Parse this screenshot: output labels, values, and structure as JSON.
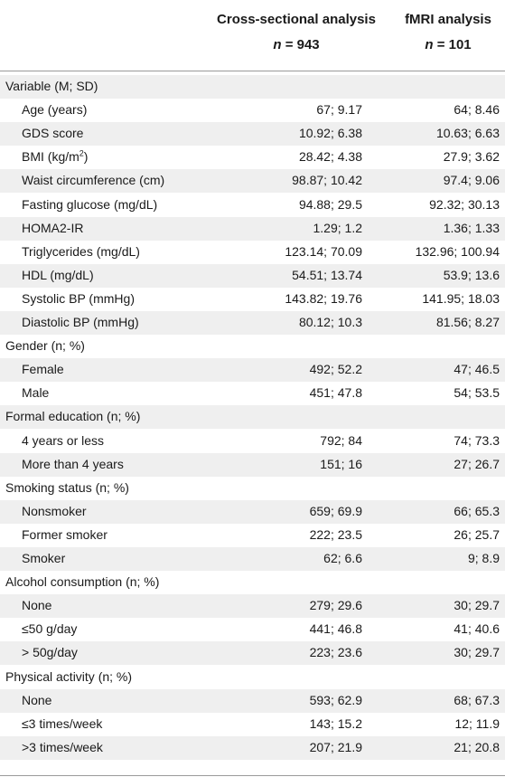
{
  "header": {
    "col1_title": "Cross-sectional analysis",
    "col1_n_label": "n",
    "col1_n_value": "= 943",
    "col2_title": "fMRI analysis",
    "col2_n_label": "n",
    "col2_n_value": "= 101"
  },
  "rows": [
    {
      "type": "group",
      "label": "Variable (M; SD)",
      "v1": "",
      "v2": ""
    },
    {
      "type": "item",
      "label": "Age (years)",
      "v1": "67; 9.17",
      "v2": "64; 8.46"
    },
    {
      "type": "item",
      "label": "GDS score",
      "v1": "10.92; 6.38",
      "v2": "10.63; 6.63"
    },
    {
      "type": "item",
      "label": "BMI (kg/m",
      "sup": "2",
      "label_after": ")",
      "v1": "28.42; 4.38",
      "v2": "27.9; 3.62"
    },
    {
      "type": "item",
      "label": "Waist circumference (cm)",
      "v1": "98.87; 10.42",
      "v2": "97.4; 9.06"
    },
    {
      "type": "item",
      "label": "Fasting glucose (mg/dL)",
      "v1": "94.88; 29.5",
      "v2": "92.32; 30.13"
    },
    {
      "type": "item",
      "label": "HOMA2-IR",
      "v1": "1.29; 1.2",
      "v2": "1.36; 1.33"
    },
    {
      "type": "item",
      "label": "Triglycerides (mg/dL)",
      "v1": "123.14; 70.09",
      "v2": "132.96; 100.94"
    },
    {
      "type": "item",
      "label": "HDL (mg/dL)",
      "v1": "54.51; 13.74",
      "v2": "53.9; 13.6"
    },
    {
      "type": "item",
      "label": "Systolic BP (mmHg)",
      "v1": "143.82; 19.76",
      "v2": "141.95; 18.03"
    },
    {
      "type": "item",
      "label": "Diastolic BP (mmHg)",
      "v1": "80.12; 10.3",
      "v2": "81.56; 8.27"
    },
    {
      "type": "group",
      "label": "Gender (n; %)",
      "v1": "",
      "v2": ""
    },
    {
      "type": "item",
      "label": "Female",
      "v1": "492; 52.2",
      "v2": "47; 46.5"
    },
    {
      "type": "item",
      "label": "Male",
      "v1": "451; 47.8",
      "v2": "54; 53.5"
    },
    {
      "type": "group",
      "label": "Formal education (n; %)",
      "v1": "",
      "v2": ""
    },
    {
      "type": "item",
      "label": "4 years or less",
      "v1": "792; 84",
      "v2": "74; 73.3"
    },
    {
      "type": "item",
      "label": "More than 4 years",
      "v1": "151; 16",
      "v2": "27; 26.7"
    },
    {
      "type": "group",
      "label": "Smoking status (n; %)",
      "v1": "",
      "v2": ""
    },
    {
      "type": "item",
      "label": "Nonsmoker",
      "v1": "659; 69.9",
      "v2": "66; 65.3"
    },
    {
      "type": "item",
      "label": "Former smoker",
      "v1": "222; 23.5",
      "v2": "26; 25.7"
    },
    {
      "type": "item",
      "label": "Smoker",
      "v1": "62; 6.6",
      "v2": "9; 8.9"
    },
    {
      "type": "group",
      "label": "Alcohol consumption (n; %)",
      "v1": "",
      "v2": ""
    },
    {
      "type": "item",
      "label": "None",
      "v1": "279; 29.6",
      "v2": "30; 29.7"
    },
    {
      "type": "item",
      "label": "≤50 g/day",
      "v1": "441; 46.8",
      "v2": "41; 40.6"
    },
    {
      "type": "item",
      "label": "> 50g/day",
      "v1": "223; 23.6",
      "v2": "30; 29.7"
    },
    {
      "type": "group",
      "label": "Physical activity (n; %)",
      "v1": "",
      "v2": ""
    },
    {
      "type": "item",
      "label": "None",
      "v1": "593; 62.9",
      "v2": "68; 67.3"
    },
    {
      "type": "item",
      "label": "≤3 times/week",
      "v1": "143; 15.2",
      "v2": "12; 11.9"
    },
    {
      "type": "item",
      "label": ">3 times/week",
      "v1": "207; 21.9",
      "v2": "21; 20.8"
    }
  ],
  "colors": {
    "row_shade": "#efefef",
    "rule": "#9a9a9a",
    "text": "#1a1a1a"
  }
}
